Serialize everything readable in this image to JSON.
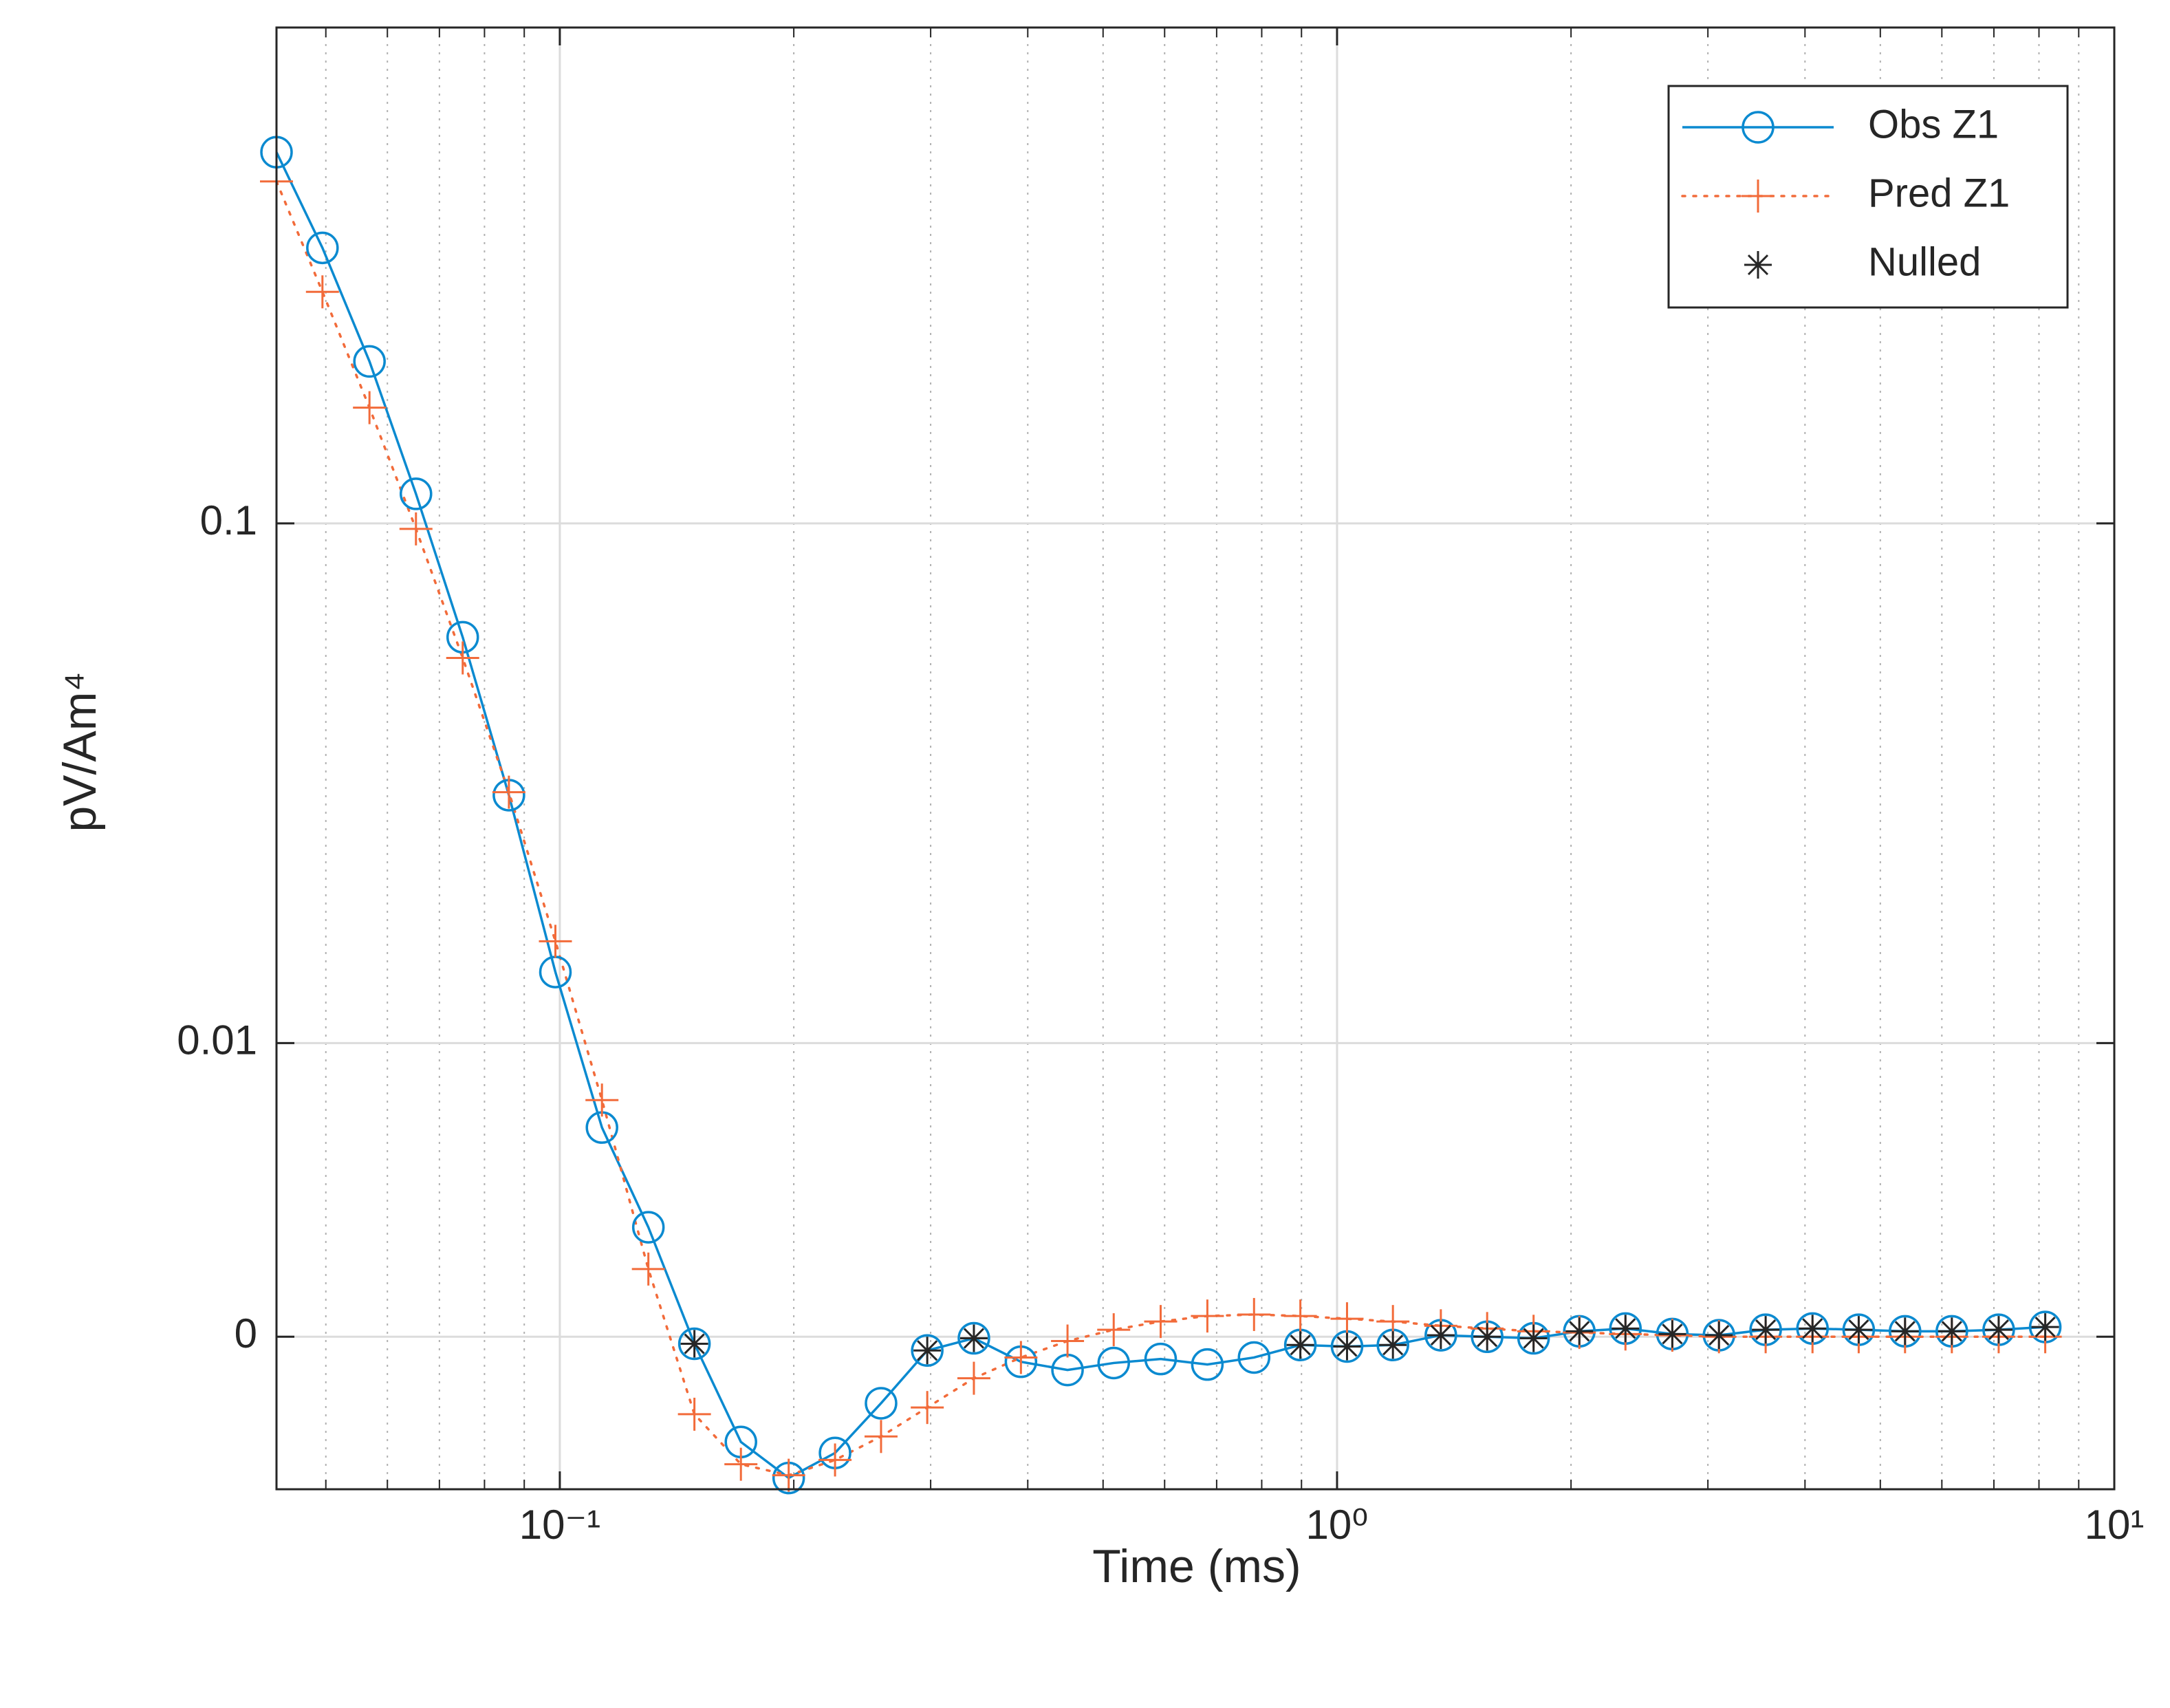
{
  "chart_data": {
    "type": "line",
    "xlabel": "Time (ms)",
    "ylabel": "pV/Am⁴",
    "xscale": "log",
    "yscale": "symlog",
    "linthresh": 0.0074,
    "xlim": [
      0.0432,
      10
    ],
    "ylim": [
      -0.005,
      0.9
    ],
    "xticks": [
      {
        "value": 0.1,
        "label": "10⁻¹"
      },
      {
        "value": 1,
        "label": "10⁰"
      },
      {
        "value": 10,
        "label": "10¹"
      }
    ],
    "xminorticks": [
      0.05,
      0.06,
      0.07,
      0.08,
      0.09,
      0.2,
      0.3,
      0.4,
      0.5,
      0.6,
      0.7,
      0.8,
      0.9,
      2,
      3,
      4,
      5,
      6,
      7,
      8,
      9
    ],
    "yticks": [
      0,
      0.01,
      0.1
    ],
    "grid": true,
    "legend": "northeast",
    "x": [
      0.0432,
      0.0495,
      0.0569,
      0.0653,
      0.075,
      0.086,
      0.0987,
      0.1133,
      0.13,
      0.149,
      0.171,
      0.197,
      0.226,
      0.259,
      0.297,
      0.341,
      0.392,
      0.45,
      0.516,
      0.593,
      0.681,
      0.782,
      0.897,
      1.03,
      1.18,
      1.36,
      1.56,
      1.79,
      2.05,
      2.35,
      2.7,
      3.1,
      3.56,
      4.09,
      4.69,
      5.38,
      6.18,
      7.1,
      8.15
    ],
    "series": [
      {
        "name": "Obs Z1",
        "color": "#0b8ad0",
        "line": "solid",
        "marker": "o",
        "values": [
          0.518,
          0.339,
          0.205,
          0.114,
          0.0604,
          0.03,
          0.0137,
          0.00686,
          0.00359,
          -0.00023,
          -0.00345,
          -0.00463,
          -0.00381,
          -0.00218,
          -0.00045,
          -5e-05,
          -0.00082,
          -0.00109,
          -0.00086,
          -0.00073,
          -0.00091,
          -0.00068,
          -0.00027,
          -0.00032,
          -0.00027,
          5e-05,
          0,
          -5e-05,
          0.00018,
          0.00027,
          9e-05,
          5e-05,
          0.00023,
          0.00027,
          0.00023,
          0.00018,
          0.00018,
          0.00023,
          0.00032
        ]
      },
      {
        "name": "Pred Z1",
        "color": "#f26b3a",
        "line": "dotted",
        "marker": "+",
        "values": [
          0.455,
          0.279,
          0.167,
          0.0976,
          0.0551,
          0.0304,
          0.0157,
          0.00777,
          0.00222,
          -0.00254,
          -0.00418,
          -0.00454,
          -0.00404,
          -0.00327,
          -0.00232,
          -0.00136,
          -0.00068,
          -0.00014,
          0.00023,
          0.0005,
          0.00068,
          0.00073,
          0.00068,
          0.00059,
          0.0005,
          0.00036,
          0.00027,
          0.00018,
          0.00014,
          9e-05,
          5e-05,
          0,
          0,
          0,
          0,
          0,
          0,
          0,
          0
        ]
      },
      {
        "name": "Nulled",
        "color": "#262626",
        "line": "none",
        "marker": "*",
        "values": [
          null,
          null,
          null,
          null,
          null,
          null,
          null,
          null,
          null,
          -0.00023,
          null,
          null,
          null,
          null,
          -0.00045,
          -5e-05,
          null,
          null,
          null,
          null,
          null,
          null,
          -0.00027,
          -0.00032,
          -0.00027,
          5e-05,
          0,
          -5e-05,
          0.00018,
          0.00027,
          9e-05,
          5e-05,
          0.00023,
          0.00027,
          0.00023,
          0.00018,
          0.00018,
          0.00023,
          0.00032
        ]
      }
    ]
  }
}
